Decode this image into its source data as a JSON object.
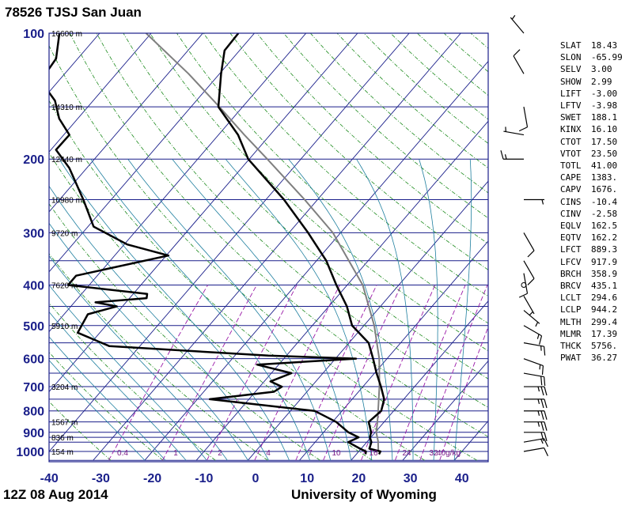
{
  "header": {
    "title": "78526 TJSJ San Juan"
  },
  "footer": {
    "time": "12Z 08 Aug 2014",
    "credit": "University of Wyoming"
  },
  "colors": {
    "isobar": "#1a1f8a",
    "isotherm": "#1a1f8a",
    "dry_adiabat": "#1f8c1f",
    "moist_adiabat": "#1f7f9f",
    "mixing_ratio": "#9a1aa8",
    "temperature": "#000000",
    "dewpoint": "#000000",
    "parcel": "#7f7f7f",
    "axis_text": "#1a1f8a",
    "height_text": "#000000",
    "mixratio_text": "#7a1a88"
  },
  "chart_data": {
    "type": "line",
    "subtype": "skew-T log-P sounding diagram",
    "x_axis": {
      "ticks": [
        -40,
        -30,
        -20,
        -10,
        0,
        10,
        20,
        30,
        40
      ],
      "xlim": [
        -40,
        45
      ]
    },
    "y_axis": {
      "scale": "log",
      "ticks": [
        100,
        200,
        300,
        400,
        500,
        600,
        700,
        800,
        900,
        1000
      ],
      "ylim": [
        1050,
        100
      ]
    },
    "height_labels": [
      {
        "p": 100,
        "text": "16600 m"
      },
      {
        "p": 150,
        "text": "14310 m"
      },
      {
        "p": 200,
        "text": "12440 m"
      },
      {
        "p": 250,
        "text": "10980 m"
      },
      {
        "p": 300,
        "text": "9720 m"
      },
      {
        "p": 400,
        "text": "7620 m"
      },
      {
        "p": 500,
        "text": "5910 m"
      },
      {
        "p": 700,
        "text": "3204 m"
      },
      {
        "p": 850,
        "text": "1567 m"
      },
      {
        "p": 925,
        "text": "836 m"
      },
      {
        "p": 1000,
        "text": "154 m"
      }
    ],
    "mixing_ratio_labels": [
      "0.4",
      "1",
      "2",
      "4",
      "7",
      "10",
      "16",
      "24",
      "32",
      "40g/kg"
    ],
    "mixing_ratio_values": [
      0.4,
      1,
      2,
      4,
      7,
      10,
      16,
      24,
      32,
      40
    ],
    "series": [
      {
        "key": "temperature",
        "points": [
          [
            1016,
            24.4
          ],
          [
            1000,
            24.2
          ],
          [
            985,
            21.6
          ],
          [
            950,
            20.9
          ],
          [
            925,
            19.8
          ],
          [
            900,
            19.2
          ],
          [
            850,
            17.0
          ],
          [
            800,
            17.6
          ],
          [
            750,
            16.2
          ],
          [
            700,
            13.5
          ],
          [
            650,
            10.4
          ],
          [
            600,
            7.3
          ],
          [
            550,
            3.8
          ],
          [
            500,
            -2.3
          ],
          [
            450,
            -6.5
          ],
          [
            400,
            -12.1
          ],
          [
            350,
            -18.1
          ],
          [
            300,
            -26.3
          ],
          [
            250,
            -36.5
          ],
          [
            200,
            -50.2
          ],
          [
            175,
            -56.2
          ],
          [
            150,
            -64.7
          ],
          [
            125,
            -69.7
          ],
          [
            110,
            -72.9
          ],
          [
            100,
            -73.1
          ]
        ]
      },
      {
        "key": "dewpoint",
        "points": [
          [
            1016,
            21.8
          ],
          [
            1000,
            21.4
          ],
          [
            985,
            19.8
          ],
          [
            950,
            16.4
          ],
          [
            925,
            17.6
          ],
          [
            900,
            14.8
          ],
          [
            850,
            10.7
          ],
          [
            800,
            4.7
          ],
          [
            750,
            -17.6
          ],
          [
            720,
            -6.4
          ],
          [
            700,
            -5.7
          ],
          [
            680,
            -8.8
          ],
          [
            650,
            -6.1
          ],
          [
            620,
            -14.2
          ],
          [
            600,
            4.0
          ],
          [
            590,
            -13.5
          ],
          [
            560,
            -45.9
          ],
          [
            520,
            -54.3
          ],
          [
            470,
            -55.4
          ],
          [
            450,
            -51.1
          ],
          [
            440,
            -55.9
          ],
          [
            430,
            -46.7
          ],
          [
            420,
            -47.3
          ],
          [
            400,
            -64.1
          ],
          [
            380,
            -64.1
          ],
          [
            340,
            -49.6
          ],
          [
            320,
            -59.4
          ],
          [
            290,
            -68.9
          ],
          [
            250,
            -75.4
          ],
          [
            210,
            -83.4
          ],
          [
            190,
            -89.0
          ],
          [
            175,
            -88.9
          ],
          [
            160,
            -93.6
          ],
          [
            145,
            -97.4
          ],
          [
            130,
            -103.5
          ],
          [
            115,
            -104.2
          ],
          [
            100,
            -107.8
          ]
        ]
      },
      {
        "key": "parcel",
        "points": [
          [
            1000,
            23.8
          ],
          [
            944,
            22.0
          ],
          [
            900,
            20.2
          ],
          [
            850,
            18.7
          ],
          [
            800,
            17.0
          ],
          [
            700,
            13.2
          ],
          [
            600,
            8.5
          ],
          [
            500,
            2.0
          ],
          [
            400,
            -7.0
          ],
          [
            300,
            -21.5
          ],
          [
            250,
            -32.5
          ],
          [
            200,
            -46.5
          ],
          [
            175,
            -55.0
          ],
          [
            150,
            -64.5
          ],
          [
            125,
            -76.0
          ],
          [
            100,
            -91.0
          ]
        ]
      }
    ],
    "wind_barbs": [
      {
        "p": 100,
        "dir": 320,
        "spd": 5
      },
      {
        "p": 125,
        "dir": 330,
        "spd": 10
      },
      {
        "p": 150,
        "dir": 170,
        "spd": 10
      },
      {
        "p": 175,
        "dir": 280,
        "spd": 5
      },
      {
        "p": 200,
        "dir": 270,
        "spd": 15
      },
      {
        "p": 250,
        "dir": 90,
        "spd": 5
      },
      {
        "p": 300,
        "dir": 150,
        "spd": 10
      },
      {
        "p": 350,
        "dir": 150,
        "spd": 10
      },
      {
        "p": 375,
        "dir": 170,
        "spd": 10
      },
      {
        "p": 400,
        "dir": 0,
        "spd": 0
      },
      {
        "p": 425,
        "dir": 150,
        "spd": 5
      },
      {
        "p": 460,
        "dir": 130,
        "spd": 5
      },
      {
        "p": 500,
        "dir": 120,
        "spd": 15
      },
      {
        "p": 550,
        "dir": 100,
        "spd": 15
      },
      {
        "p": 600,
        "dir": 110,
        "spd": 15
      },
      {
        "p": 650,
        "dir": 100,
        "spd": 20
      },
      {
        "p": 700,
        "dir": 90,
        "spd": 25
      },
      {
        "p": 750,
        "dir": 90,
        "spd": 25
      },
      {
        "p": 800,
        "dir": 90,
        "spd": 25
      },
      {
        "p": 850,
        "dir": 90,
        "spd": 25
      },
      {
        "p": 900,
        "dir": 90,
        "spd": 20
      },
      {
        "p": 950,
        "dir": 80,
        "spd": 15
      },
      {
        "p": 1000,
        "dir": 80,
        "spd": 10
      }
    ]
  },
  "indices": [
    {
      "key": "SLAT",
      "value": "18.43"
    },
    {
      "key": "SLON",
      "value": "-65.99"
    },
    {
      "key": "SELV",
      "value": "3.00"
    },
    {
      "key": "SHOW",
      "value": "2.99"
    },
    {
      "key": "LIFT",
      "value": "-3.00"
    },
    {
      "key": "LFTV",
      "value": "-3.98"
    },
    {
      "key": "SWET",
      "value": "188.1"
    },
    {
      "key": "KINX",
      "value": "16.10"
    },
    {
      "key": "CTOT",
      "value": "17.50"
    },
    {
      "key": "VTOT",
      "value": "23.50"
    },
    {
      "key": "TOTL",
      "value": "41.00"
    },
    {
      "key": "CAPE",
      "value": "1383."
    },
    {
      "key": "CAPV",
      "value": "1676."
    },
    {
      "key": "CINS",
      "value": "-10.4"
    },
    {
      "key": "CINV",
      "value": "-2.58"
    },
    {
      "key": "EQLV",
      "value": "162.5"
    },
    {
      "key": "EQTV",
      "value": "162.2"
    },
    {
      "key": "LFCT",
      "value": "889.3"
    },
    {
      "key": "LFCV",
      "value": "917.9"
    },
    {
      "key": "BRCH",
      "value": "358.9"
    },
    {
      "key": "BRCV",
      "value": "435.1"
    },
    {
      "key": "LCLT",
      "value": "294.6"
    },
    {
      "key": "LCLP",
      "value": "944.2"
    },
    {
      "key": "MLTH",
      "value": "299.4"
    },
    {
      "key": "MLMR",
      "value": "17.39"
    },
    {
      "key": "THCK",
      "value": "5756."
    },
    {
      "key": "PWAT",
      "value": "36.27"
    }
  ]
}
